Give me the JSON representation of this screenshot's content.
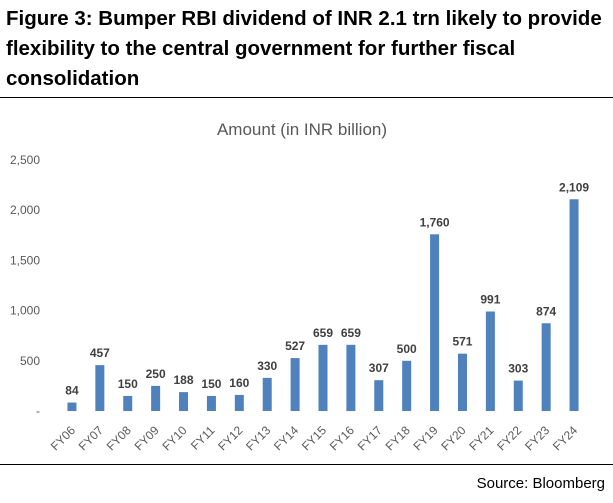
{
  "figure": {
    "title": "Figure 3: Bumper RBI dividend of INR 2.1 trn likely to provide flexibility to the central government for further fiscal consolidation",
    "source": "Source: Bloomberg"
  },
  "colors": {
    "bar": "#4f81bd",
    "axis_text": "#595959",
    "chart_title": "#595959",
    "data_label": "#404040"
  },
  "chart_data": {
    "type": "bar",
    "title": "Amount (in INR billion)",
    "xlabel": "",
    "ylabel": "",
    "categories": [
      "FY06",
      "FY07",
      "FY08",
      "FY09",
      "FY10",
      "FY11",
      "FY12",
      "FY13",
      "FY14",
      "FY15",
      "FY16",
      "FY17",
      "FY18",
      "FY19",
      "FY20",
      "FY21",
      "FY22",
      "FY23",
      "FY24"
    ],
    "values": [
      84,
      457,
      150,
      250,
      188,
      150,
      160,
      330,
      527,
      659,
      659,
      307,
      500,
      1760,
      571,
      991,
      303,
      874,
      2109
    ],
    "data_labels": [
      "84",
      "457",
      "150",
      "250",
      "188",
      "150",
      "160",
      "330",
      "527",
      "659",
      "659",
      "307",
      "500",
      "1,760",
      "571",
      "991",
      "303",
      "874",
      "2,109"
    ],
    "ylim": [
      0,
      2500
    ],
    "yticks": [
      0,
      500,
      1000,
      1500,
      2000,
      2500
    ],
    "ytick_labels": [
      "-",
      "500",
      "1,000",
      "1,500",
      "2,000",
      "2,500"
    ],
    "grid": false,
    "legend": "none"
  }
}
